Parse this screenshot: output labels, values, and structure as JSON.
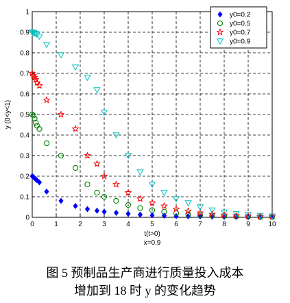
{
  "chart_data": {
    "type": "scatter",
    "xlabel": "t(t>0)",
    "xlabel2": "x=0.9",
    "ylabel": "y (0<y<1)",
    "xlim": [
      0,
      10
    ],
    "ylim": [
      0,
      1
    ],
    "xticks": [
      "0",
      "1",
      "2",
      "3",
      "4",
      "5",
      "6",
      "7",
      "8",
      "9",
      "10"
    ],
    "yticks": [
      "0",
      "0.1",
      "0.2",
      "0.3",
      "0.4",
      "0.5",
      "0.6",
      "0.7",
      "0.8",
      "0.9",
      "1"
    ],
    "grid": true,
    "grid_style": "dashed",
    "legend_position": "top-right",
    "x": [
      0,
      0.05,
      0.1,
      0.15,
      0.2,
      0.3,
      0.6,
      1.2,
      1.8,
      2.3,
      2.7,
      3.0,
      3.5,
      4.0,
      4.5,
      5.0,
      5.5,
      6.0,
      6.5,
      7.0,
      7.5,
      8.0,
      8.5,
      9.0,
      9.5,
      10.0
    ],
    "series": [
      {
        "name": "y0=0.2",
        "marker": "diamond",
        "color": "#0000ff",
        "values": [
          0.2,
          0.196,
          0.19,
          0.185,
          0.18,
          0.17,
          0.125,
          0.08,
          0.055,
          0.04,
          0.032,
          0.027,
          0.022,
          0.017,
          0.013,
          0.01,
          0.008,
          0.006,
          0.005,
          0.004,
          0.003,
          0.002,
          0.002,
          0.001,
          0.001,
          0.001
        ]
      },
      {
        "name": "y0=0.5",
        "marker": "circle",
        "color": "#008000",
        "values": [
          0.5,
          0.495,
          0.48,
          0.46,
          0.445,
          0.43,
          0.36,
          0.3,
          0.24,
          0.16,
          0.12,
          0.1,
          0.08,
          0.06,
          0.045,
          0.035,
          0.027,
          0.02,
          0.015,
          0.011,
          0.008,
          0.006,
          0.004,
          0.003,
          0.002,
          0.002
        ]
      },
      {
        "name": "y0=0.7",
        "marker": "star",
        "color": "#ff0000",
        "values": [
          0.7,
          0.69,
          0.68,
          0.67,
          0.655,
          0.64,
          0.57,
          0.5,
          0.43,
          0.3,
          0.26,
          0.2,
          0.16,
          0.12,
          0.09,
          0.07,
          0.055,
          0.04,
          0.03,
          0.022,
          0.015,
          0.011,
          0.008,
          0.006,
          0.004,
          0.003
        ]
      },
      {
        "name": "y0=0.9",
        "marker": "triangle-down",
        "color": "#00bfbf",
        "values": [
          0.9,
          0.898,
          0.895,
          0.893,
          0.89,
          0.88,
          0.84,
          0.79,
          0.73,
          0.68,
          0.62,
          0.51,
          0.4,
          0.3,
          0.22,
          0.16,
          0.12,
          0.09,
          0.07,
          0.05,
          0.035,
          0.025,
          0.018,
          0.013,
          0.009,
          0.006
        ]
      }
    ]
  },
  "caption": {
    "line1": "图 5   预制品生产商进行质量投入成本",
    "line2": "增加到 18 时 y 的变化趋势"
  }
}
